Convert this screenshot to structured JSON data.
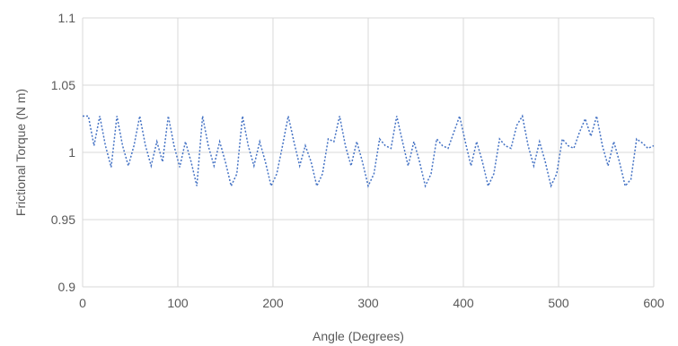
{
  "chart_data": {
    "type": "line",
    "xlabel": "Angle (Degrees)",
    "ylabel": "Frictional Torque (N m)",
    "xlim": [
      0,
      600
    ],
    "ylim": [
      0.9,
      1.1
    ],
    "x_ticks": [
      "0",
      "100",
      "200",
      "300",
      "400",
      "500",
      "600"
    ],
    "y_ticks": [
      "0.9",
      "0.95",
      "1",
      "1.05",
      "1.1"
    ],
    "grid": true,
    "line_style": "dotted",
    "colors": {
      "series": "#4472c4",
      "grid": "#d9d9d9",
      "text": "#595959"
    },
    "series": [
      {
        "x": [
          0,
          6,
          12,
          18,
          24,
          30,
          36,
          42,
          48,
          54,
          60,
          66,
          72,
          78,
          84,
          90,
          96,
          102,
          108,
          114,
          120,
          126,
          132,
          138,
          144,
          150,
          156,
          162,
          168,
          174,
          180,
          186,
          192,
          198,
          204,
          210,
          216,
          222,
          228,
          234,
          240,
          246,
          252,
          258,
          264,
          270,
          276,
          282,
          288,
          294,
          300,
          306,
          312,
          318,
          324,
          330,
          336,
          342,
          348,
          354,
          360,
          366,
          372,
          378,
          384,
          390,
          396,
          402,
          408,
          414,
          420,
          426,
          432,
          438,
          444,
          450,
          456,
          462,
          468,
          474,
          480,
          486,
          492,
          498,
          504,
          510,
          516,
          522,
          528,
          534,
          540,
          546,
          552,
          558,
          564,
          570,
          576,
          582,
          588,
          594,
          600
        ],
        "values": [
          1.027,
          1.027,
          1.005,
          1.027,
          1.005,
          0.989,
          1.027,
          1.005,
          0.99,
          1.005,
          1.027,
          1.005,
          0.99,
          1.008,
          0.993,
          1.027,
          1.005,
          0.989,
          1.008,
          0.993,
          0.975,
          1.027,
          1.005,
          0.99,
          1.008,
          0.993,
          0.975,
          0.984,
          1.027,
          1.005,
          0.99,
          1.008,
          0.993,
          0.975,
          0.984,
          1.005,
          1.027,
          1.008,
          0.99,
          1.005,
          0.993,
          0.975,
          0.984,
          1.01,
          1.008,
          1.027,
          1.005,
          0.99,
          1.008,
          0.993,
          0.975,
          0.984,
          1.01,
          1.005,
          1.003,
          1.027,
          1.008,
          0.99,
          1.008,
          0.993,
          0.975,
          0.984,
          1.01,
          1.005,
          1.003,
          1.015,
          1.027,
          1.008,
          0.99,
          1.008,
          0.993,
          0.975,
          0.984,
          1.01,
          1.005,
          1.003,
          1.02,
          1.027,
          1.005,
          0.99,
          1.008,
          0.993,
          0.975,
          0.984,
          1.01,
          1.005,
          1.003,
          1.015,
          1.025,
          1.012,
          1.027,
          1.005,
          0.99,
          1.008,
          0.993,
          0.975,
          0.98,
          1.01,
          1.007,
          1.003,
          1.005
        ]
      }
    ]
  }
}
